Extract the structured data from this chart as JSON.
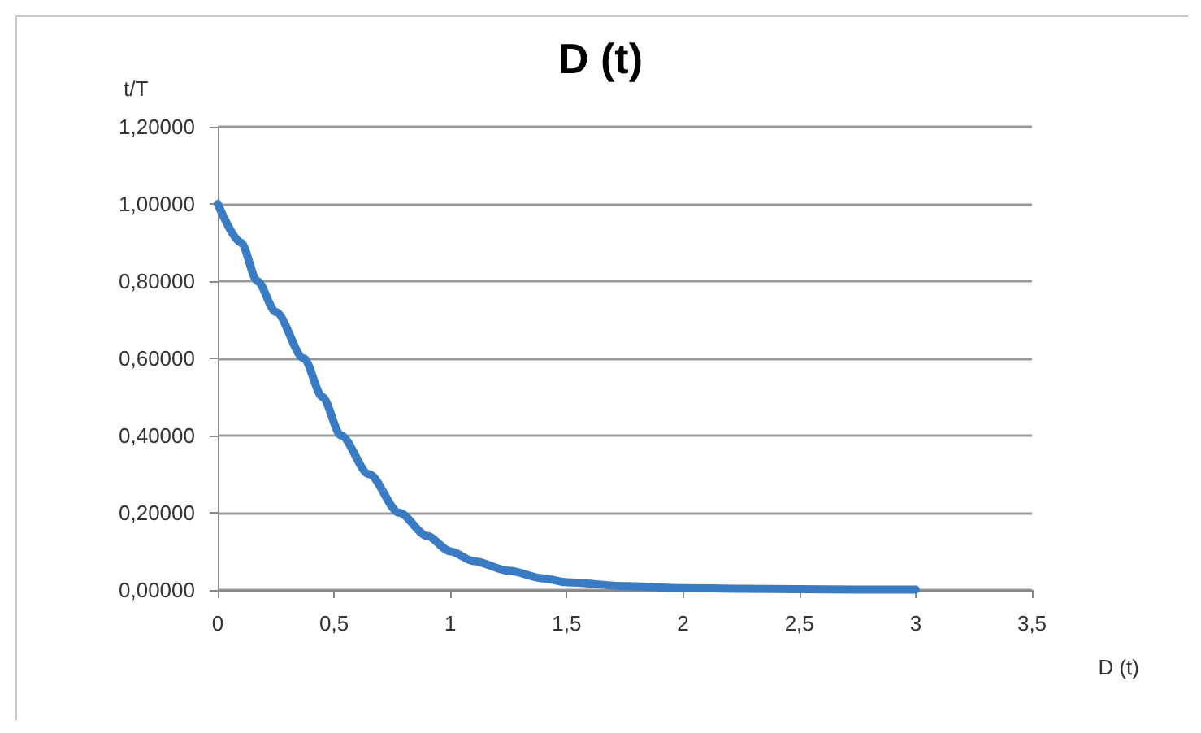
{
  "chart_data": {
    "type": "line",
    "title": "D (t)",
    "xlabel": "D (t)",
    "ylabel": "t/T",
    "x": [
      0,
      0.1,
      0.17,
      0.25,
      0.37,
      0.45,
      0.53,
      0.65,
      0.78,
      0.9,
      1,
      1.1,
      1.25,
      1.4,
      1.5,
      1.75,
      2,
      2.25,
      2.5,
      2.75,
      3
    ],
    "series": [
      {
        "color": "#3a7cc4",
        "values": [
          1,
          0.9,
          0.8,
          0.72,
          0.6,
          0.5,
          0.4,
          0.3,
          0.2,
          0.14,
          0.1,
          0.075,
          0.05,
          0.03,
          0.02,
          0.01,
          0.005,
          0.003,
          0.002,
          0.001,
          0.001
        ]
      }
    ],
    "xlim": [
      0,
      3.5
    ],
    "xticks": [
      {
        "value": 0,
        "label": "0"
      },
      {
        "value": 0.5,
        "label": "0,5"
      },
      {
        "value": 1,
        "label": "1"
      },
      {
        "value": 1.5,
        "label": "1,5"
      },
      {
        "value": 2,
        "label": "2"
      },
      {
        "value": 2.5,
        "label": "2,5"
      },
      {
        "value": 3,
        "label": "3"
      },
      {
        "value": 3.5,
        "label": "3,5"
      }
    ],
    "ylim": [
      0,
      1.2
    ],
    "yticks": [
      {
        "value": 0,
        "label": "0,00000"
      },
      {
        "value": 0.2,
        "label": "0,20000"
      },
      {
        "value": 0.4,
        "label": "0,40000"
      },
      {
        "value": 0.6,
        "label": "0,60000"
      },
      {
        "value": 0.8,
        "label": "0,80000"
      },
      {
        "value": 1,
        "label": "1,00000"
      },
      {
        "value": 1.2,
        "label": "1,20000"
      }
    ],
    "grid": "y",
    "marker": "none",
    "line_style": "solid"
  }
}
